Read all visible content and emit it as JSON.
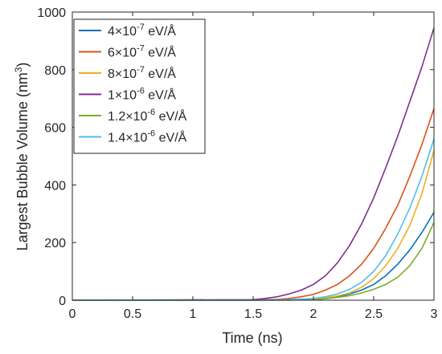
{
  "chart_data": {
    "type": "line",
    "xlabel": "Time (ns)",
    "ylabel_main": "Largest Bubble Volume (nm",
    "ylabel_sup": "3",
    "ylabel_close": ")",
    "xlim": [
      0,
      3
    ],
    "ylim": [
      0,
      1000
    ],
    "xticks": [
      0,
      0.5,
      1,
      1.5,
      2,
      2.5,
      3
    ],
    "xtick_labels": [
      "0",
      "0.5",
      "1",
      "1.5",
      "2",
      "2.5",
      "3"
    ],
    "yticks": [
      0,
      200,
      400,
      600,
      800,
      1000
    ],
    "ytick_labels": [
      "0",
      "200",
      "400",
      "600",
      "800",
      "1000"
    ],
    "grid": false,
    "legend_position": "top-left",
    "series": [
      {
        "name": "4×10-7 eV/Å",
        "legend_base": "4×10",
        "legend_exp": "-7",
        "legend_unit": " eV/Å",
        "color": "#0072BD",
        "x": [
          0,
          1.5,
          1.8,
          2.0,
          2.1,
          2.2,
          2.3,
          2.4,
          2.5,
          2.6,
          2.7,
          2.8,
          2.9,
          3.0
        ],
        "y": [
          0,
          0,
          1,
          3,
          6,
          12,
          22,
          35,
          55,
          85,
          125,
          175,
          235,
          305
        ]
      },
      {
        "name": "6×10-7 eV/Å",
        "legend_base": "6×10",
        "legend_exp": "-7",
        "legend_unit": " eV/Å",
        "color": "#D95319",
        "x": [
          0,
          1.5,
          1.7,
          1.8,
          1.9,
          2.0,
          2.1,
          2.2,
          2.3,
          2.4,
          2.5,
          2.6,
          2.7,
          2.8,
          2.9,
          3.0
        ],
        "y": [
          0,
          0,
          3,
          6,
          12,
          20,
          35,
          55,
          85,
          125,
          180,
          250,
          330,
          430,
          540,
          665
        ]
      },
      {
        "name": "8×10-7 eV/Å",
        "legend_base": "8×10",
        "legend_exp": "-7",
        "legend_unit": " eV/Å",
        "color": "#EDB120",
        "x": [
          0,
          1.5,
          1.8,
          2.0,
          2.1,
          2.2,
          2.3,
          2.4,
          2.5,
          2.6,
          2.7,
          2.8,
          2.9,
          3.0
        ],
        "y": [
          0,
          0,
          1,
          4,
          8,
          15,
          25,
          45,
          75,
          120,
          180,
          260,
          370,
          520
        ]
      },
      {
        "name": "1×10-6 eV/Å",
        "legend_base": "1×10",
        "legend_exp": "-6",
        "legend_unit": " eV/Å",
        "color": "#7E2F8E",
        "x": [
          0,
          1.5,
          1.6,
          1.7,
          1.8,
          1.9,
          2.0,
          2.1,
          2.2,
          2.3,
          2.4,
          2.5,
          2.6,
          2.7,
          2.8,
          2.9,
          3.0
        ],
        "y": [
          0,
          2,
          6,
          12,
          22,
          35,
          55,
          85,
          130,
          190,
          265,
          355,
          460,
          570,
          690,
          810,
          945
        ]
      },
      {
        "name": "1.2×10-6 eV/Å",
        "legend_base": "1.2×10",
        "legend_exp": "-6",
        "legend_unit": " eV/Å",
        "color": "#77AC30",
        "x": [
          0,
          1.5,
          1.8,
          2.0,
          2.1,
          2.2,
          2.3,
          2.4,
          2.5,
          2.6,
          2.7,
          2.8,
          2.9,
          3.0
        ],
        "y": [
          0,
          0,
          0,
          2,
          5,
          10,
          16,
          25,
          38,
          55,
          80,
          120,
          180,
          270
        ]
      },
      {
        "name": "1.4×10-6 eV/Å",
        "legend_base": "1.4×10",
        "legend_exp": "-6",
        "legend_unit": " eV/Å",
        "color": "#4DBEEE",
        "x": [
          0,
          1.5,
          1.8,
          2.0,
          2.1,
          2.2,
          2.3,
          2.4,
          2.5,
          2.6,
          2.7,
          2.8,
          2.9,
          3.0
        ],
        "y": [
          0,
          0,
          2,
          6,
          12,
          22,
          38,
          62,
          100,
          155,
          230,
          320,
          430,
          560
        ]
      }
    ]
  }
}
